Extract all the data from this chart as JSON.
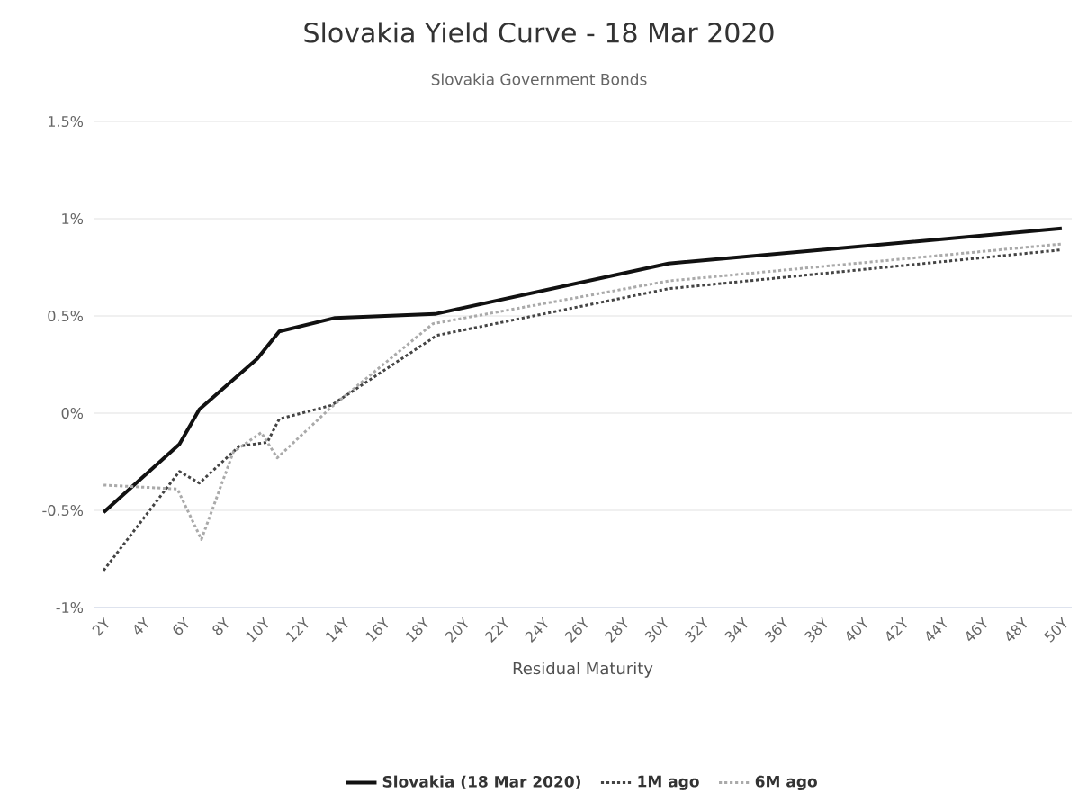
{
  "chart_data": {
    "type": "line",
    "title": "Slovakia Yield Curve - 18 Mar 2020",
    "subtitle": "Slovakia Government Bonds",
    "xlabel": "Residual Maturity",
    "xlim": [
      1.5,
      50.5
    ],
    "xticks": [
      {
        "value": 2,
        "label": "2Y"
      },
      {
        "value": 4,
        "label": "4Y"
      },
      {
        "value": 6,
        "label": "6Y"
      },
      {
        "value": 8,
        "label": "8Y"
      },
      {
        "value": 10,
        "label": "10Y"
      },
      {
        "value": 12,
        "label": "12Y"
      },
      {
        "value": 14,
        "label": "14Y"
      },
      {
        "value": 16,
        "label": "16Y"
      },
      {
        "value": 18,
        "label": "18Y"
      },
      {
        "value": 20,
        "label": "20Y"
      },
      {
        "value": 22,
        "label": "22Y"
      },
      {
        "value": 24,
        "label": "24Y"
      },
      {
        "value": 26,
        "label": "26Y"
      },
      {
        "value": 28,
        "label": "28Y"
      },
      {
        "value": 30,
        "label": "30Y"
      },
      {
        "value": 32,
        "label": "32Y"
      },
      {
        "value": 34,
        "label": "34Y"
      },
      {
        "value": 36,
        "label": "36Y"
      },
      {
        "value": 38,
        "label": "38Y"
      },
      {
        "value": 40,
        "label": "40Y"
      },
      {
        "value": 42,
        "label": "42Y"
      },
      {
        "value": 44,
        "label": "44Y"
      },
      {
        "value": 46,
        "label": "46Y"
      },
      {
        "value": 48,
        "label": "48Y"
      },
      {
        "value": 50,
        "label": "50Y"
      }
    ],
    "ylim": [
      -1,
      1.5
    ],
    "yticks": [
      {
        "value": -1,
        "label": "-1%"
      },
      {
        "value": -0.5,
        "label": "-0.5%"
      },
      {
        "value": 0,
        "label": "0%"
      },
      {
        "value": 0.5,
        "label": "0.5%"
      },
      {
        "value": 1,
        "label": "1%"
      },
      {
        "value": 1.5,
        "label": "1.5%"
      }
    ],
    "grid": "y",
    "legend": "bottom",
    "marker": "none",
    "series": [
      {
        "name": "Slovakia (18 Mar 2020)",
        "color": "#111111",
        "line_style": "solid",
        "x": [
          2,
          5.8,
          6.8,
          9.7,
          10.8,
          13.6,
          18.6,
          30.3,
          50
        ],
        "values": [
          -0.51,
          -0.16,
          0.02,
          0.28,
          0.42,
          0.49,
          0.51,
          0.77,
          0.95
        ]
      },
      {
        "name": "1M ago",
        "color": "#444444",
        "line_style": "dotted",
        "x": [
          2,
          5.8,
          6.8,
          8.8,
          10.2,
          10.8,
          13.4,
          18.7,
          30.3,
          50
        ],
        "values": [
          -0.81,
          -0.3,
          -0.36,
          -0.17,
          -0.15,
          -0.03,
          0.04,
          0.4,
          0.64,
          0.84
        ]
      },
      {
        "name": "6M ago",
        "color": "#aaaaaa",
        "line_style": "dotted",
        "x": [
          2,
          5.7,
          6.9,
          8.5,
          9.9,
          10.7,
          13.4,
          18.5,
          30.3,
          50
        ],
        "values": [
          -0.37,
          -0.39,
          -0.65,
          -0.2,
          -0.1,
          -0.23,
          0.03,
          0.46,
          0.68,
          0.87
        ]
      }
    ]
  }
}
